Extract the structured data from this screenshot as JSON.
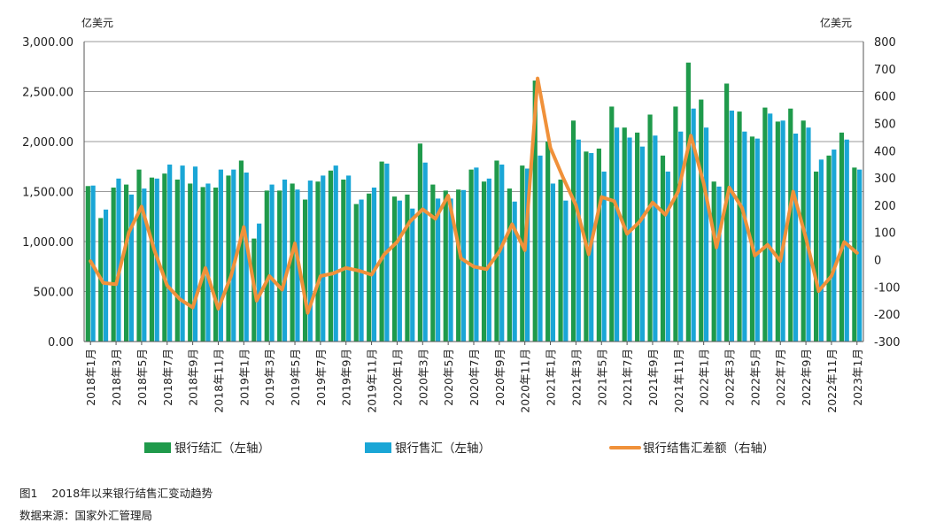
{
  "chart_data": {
    "type": "bar",
    "left_unit": "亿美元",
    "right_unit": "亿美元",
    "left_ylim": [
      0,
      3000
    ],
    "left_ticks": [
      "3,000.00",
      "2,500.00",
      "2,000.00",
      "1,500.00",
      "1,000.00",
      "500.00",
      "0.00"
    ],
    "right_ylim": [
      -300,
      800
    ],
    "right_ticks": [
      "800",
      "700",
      "600",
      "500",
      "400",
      "300",
      "200",
      "100",
      "0",
      "-100",
      "-200",
      "-300"
    ],
    "grid": true,
    "legend_position": "bottom",
    "x_tick_labels": [
      "2018年1月",
      "2018年3月",
      "2018年5月",
      "2018年7月",
      "2018年9月",
      "2018年11月",
      "2019年1月",
      "2019年3月",
      "2019年5月",
      "2019年7月",
      "2019年9月",
      "2019年11月",
      "2020年1月",
      "2020年3月",
      "2020年5月",
      "2020年7月",
      "2020年9月",
      "2020年11月",
      "2021年1月",
      "2021年3月",
      "2021年5月",
      "2021年7月",
      "2021年9月",
      "2021年11月",
      "2022年1月",
      "2022年3月",
      "2022年5月",
      "2022年7月",
      "2022年9月",
      "2022年11月",
      "2023年1月"
    ],
    "series": [
      {
        "name": "银行结汇（左轴）",
        "type": "bar",
        "axis": "left",
        "color": "#1f9a4b",
        "values": [
          1555,
          1235,
          1540,
          1570,
          1720,
          1640,
          1680,
          1620,
          1580,
          1545,
          1540,
          1660,
          1810,
          1030,
          1510,
          1510,
          1580,
          1420,
          1600,
          1710,
          1620,
          1375,
          1480,
          1800,
          1450,
          1470,
          1980,
          1570,
          1510,
          1520,
          1720,
          1600,
          1810,
          1530,
          1760,
          2610,
          2000,
          1620,
          2210,
          1900,
          1930,
          2350,
          2140,
          2090,
          2270,
          1860,
          2350,
          2790,
          2420,
          1600,
          2580,
          2300,
          2050,
          2340,
          2200,
          2330,
          2210,
          1700,
          1860,
          2090,
          1740
        ]
      },
      {
        "name": "银行售汇（左轴）",
        "type": "bar",
        "axis": "left",
        "color": "#1aa6d6",
        "values": [
          1560,
          1320,
          1630,
          1470,
          1530,
          1630,
          1770,
          1760,
          1750,
          1580,
          1720,
          1720,
          1690,
          1180,
          1570,
          1620,
          1520,
          1610,
          1660,
          1760,
          1660,
          1420,
          1540,
          1780,
          1410,
          1330,
          1790,
          1430,
          1430,
          1515,
          1740,
          1630,
          1770,
          1400,
          1730,
          1860,
          1580,
          1410,
          2020,
          1885,
          1700,
          2140,
          2040,
          1950,
          2060,
          1700,
          2100,
          2330,
          2140,
          1550,
          2310,
          2100,
          2030,
          2280,
          2210,
          2080,
          2140,
          1820,
          1920,
          2020,
          1720
        ]
      },
      {
        "name": "银行结售汇差额（右轴）",
        "type": "line",
        "axis": "right",
        "color": "#f0913a",
        "values": [
          -5,
          -85,
          -90,
          100,
          195,
          35,
          -95,
          -145,
          -175,
          -30,
          -180,
          -60,
          120,
          -150,
          -60,
          -110,
          60,
          -195,
          -60,
          -50,
          -30,
          -40,
          -55,
          20,
          65,
          140,
          185,
          150,
          235,
          5,
          -25,
          -35,
          30,
          130,
          35,
          665,
          410,
          300,
          200,
          20,
          230,
          215,
          95,
          140,
          210,
          165,
          250,
          455,
          280,
          45,
          265,
          190,
          15,
          55,
          -5,
          250,
          80,
          -115,
          -60,
          65,
          25
        ]
      }
    ]
  },
  "caption": {
    "figure_label": "图1",
    "figure_title": "2018年以来银行结售汇变动趋势",
    "source": "数据来源：国家外汇管理局"
  }
}
